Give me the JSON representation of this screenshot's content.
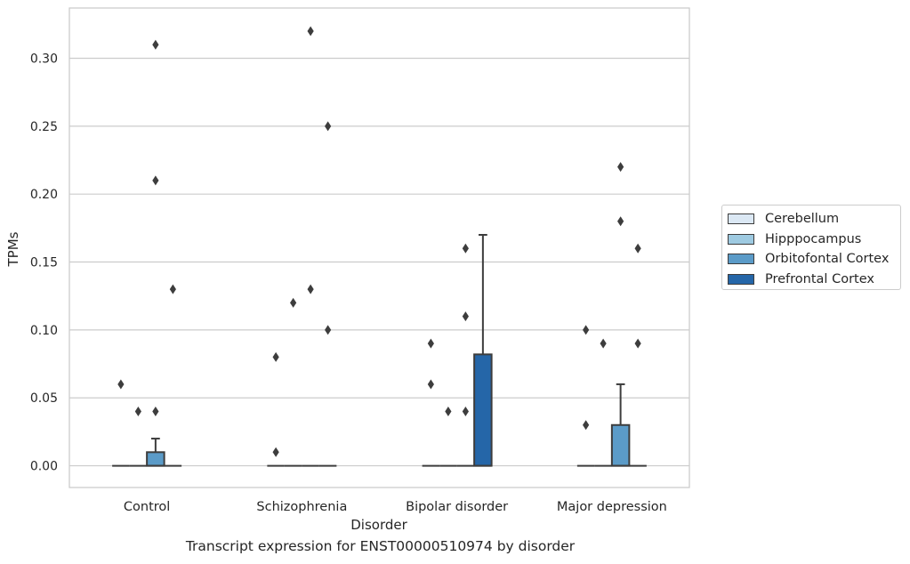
{
  "chart_data": {
    "type": "boxplot",
    "title": "",
    "caption": "Transcript expression for ENST00000510974 by disorder",
    "xlabel": "Disorder",
    "ylabel": "TPMs",
    "ylim": [
      -0.016,
      0.337
    ],
    "yticks": [
      "0.00",
      "0.05",
      "0.10",
      "0.15",
      "0.20",
      "0.25",
      "0.30"
    ],
    "grid": true,
    "legend_position": "right",
    "categories": [
      "Control",
      "Schizophrenia",
      "Bipolar disorder",
      "Major depression"
    ],
    "series": [
      {
        "name": "Cerebellum",
        "color": "#dbe8f4"
      },
      {
        "name": "Hipppocampus",
        "color": "#9ecae1"
      },
      {
        "name": "Orbitofontal Cortex",
        "color": "#5b9bc8"
      },
      {
        "name": "Prefrontal Cortex",
        "color": "#2566a8"
      }
    ],
    "boxes": [
      [
        {
          "q1": 0,
          "median": 0,
          "q3": 0,
          "whisker_low": 0,
          "whisker_high": 0,
          "outliers": [
            0.06
          ]
        },
        {
          "q1": 0,
          "median": 0,
          "q3": 0,
          "whisker_low": 0,
          "whisker_high": 0,
          "outliers": [
            0.04
          ]
        },
        {
          "q1": 0,
          "median": 0,
          "q3": 0.01,
          "whisker_low": 0,
          "whisker_high": 0.02,
          "outliers": [
            0.31,
            0.21,
            0.04
          ]
        },
        {
          "q1": 0,
          "median": 0,
          "q3": 0,
          "whisker_low": 0,
          "whisker_high": 0,
          "outliers": [
            0.13
          ]
        }
      ],
      [
        {
          "q1": 0,
          "median": 0,
          "q3": 0,
          "whisker_low": 0,
          "whisker_high": 0,
          "outliers": [
            0.08,
            0.01
          ]
        },
        {
          "q1": 0,
          "median": 0,
          "q3": 0,
          "whisker_low": 0,
          "whisker_high": 0,
          "outliers": [
            0.12
          ]
        },
        {
          "q1": 0,
          "median": 0,
          "q3": 0,
          "whisker_low": 0,
          "whisker_high": 0,
          "outliers": [
            0.32,
            0.13
          ]
        },
        {
          "q1": 0,
          "median": 0,
          "q3": 0,
          "whisker_low": 0,
          "whisker_high": 0,
          "outliers": [
            0.25,
            0.1
          ]
        }
      ],
      [
        {
          "q1": 0,
          "median": 0,
          "q3": 0,
          "whisker_low": 0,
          "whisker_high": 0,
          "outliers": [
            0.09,
            0.06
          ]
        },
        {
          "q1": 0,
          "median": 0,
          "q3": 0,
          "whisker_low": 0,
          "whisker_high": 0,
          "outliers": [
            0.04
          ]
        },
        {
          "q1": 0,
          "median": 0,
          "q3": 0,
          "whisker_low": 0,
          "whisker_high": 0,
          "outliers": [
            0.16,
            0.11,
            0.04
          ]
        },
        {
          "q1": 0,
          "median": 0,
          "q3": 0.082,
          "whisker_low": 0,
          "whisker_high": 0.17,
          "outliers": []
        }
      ],
      [
        {
          "q1": 0,
          "median": 0,
          "q3": 0,
          "whisker_low": 0,
          "whisker_high": 0,
          "outliers": [
            0.1,
            0.03
          ]
        },
        {
          "q1": 0,
          "median": 0,
          "q3": 0,
          "whisker_low": 0,
          "whisker_high": 0,
          "outliers": [
            0.09
          ]
        },
        {
          "q1": 0,
          "median": 0,
          "q3": 0.03,
          "whisker_low": 0,
          "whisker_high": 0.06,
          "outliers": [
            0.22,
            0.18
          ]
        },
        {
          "q1": 0,
          "median": 0,
          "q3": 0,
          "whisker_low": 0,
          "whisker_high": 0,
          "outliers": [
            0.16,
            0.09
          ]
        }
      ]
    ]
  }
}
